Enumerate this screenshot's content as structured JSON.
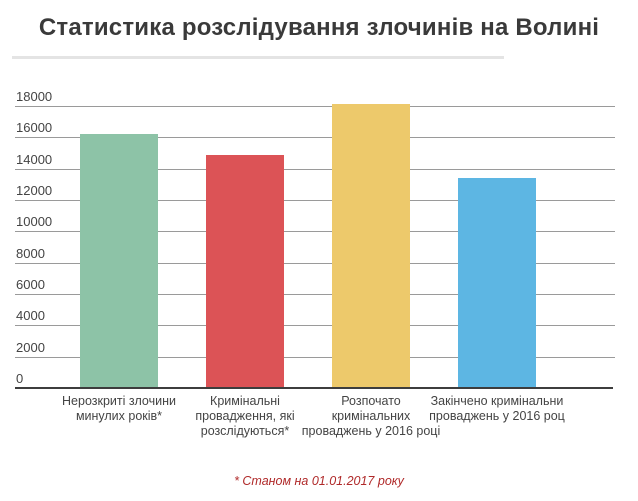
{
  "chart_data": {
    "type": "bar",
    "title": "Статистика розслідування злочинів на Волині",
    "xlabel": "",
    "ylabel": "",
    "ylim": [
      0,
      18000
    ],
    "yticks": [
      0,
      2000,
      4000,
      6000,
      8000,
      10000,
      12000,
      14000,
      16000,
      18000
    ],
    "grid": true,
    "legend": null,
    "categories": [
      "Нерозкриті злочини минулих років*",
      "Кримінальні провадження, які розслідуються*",
      "Розпочато кримінальних проваджень у 2016 році",
      "Закінчено кримінальних проваджень у 2016 році"
    ],
    "values": [
      16200,
      14900,
      18100,
      13400
    ],
    "colors": [
      "#8dc3a7",
      "#dc5356",
      "#edc96b",
      "#5db6e3"
    ],
    "annotations": [
      "* Станом на 01.01.2017 року"
    ]
  },
  "labels": {
    "title": "Статистика розслідування злочинів на Волині",
    "yticks": [
      "18000",
      "16000",
      "14000",
      "12000",
      "10000",
      "8000",
      "6000",
      "4000",
      "2000",
      "0"
    ],
    "x": [
      [
        "Нерозкриті злочини",
        "минулих років*"
      ],
      [
        "Кримінальні",
        "провадження, які",
        "розслідуються*"
      ],
      [
        "Розпочато",
        "кримінальних",
        "проваджень у 2016 році"
      ],
      [
        "Закінчено кримінальни",
        "проваджень у 2016 роц"
      ]
    ],
    "note": "* Станом на 01.01.2017 року"
  }
}
